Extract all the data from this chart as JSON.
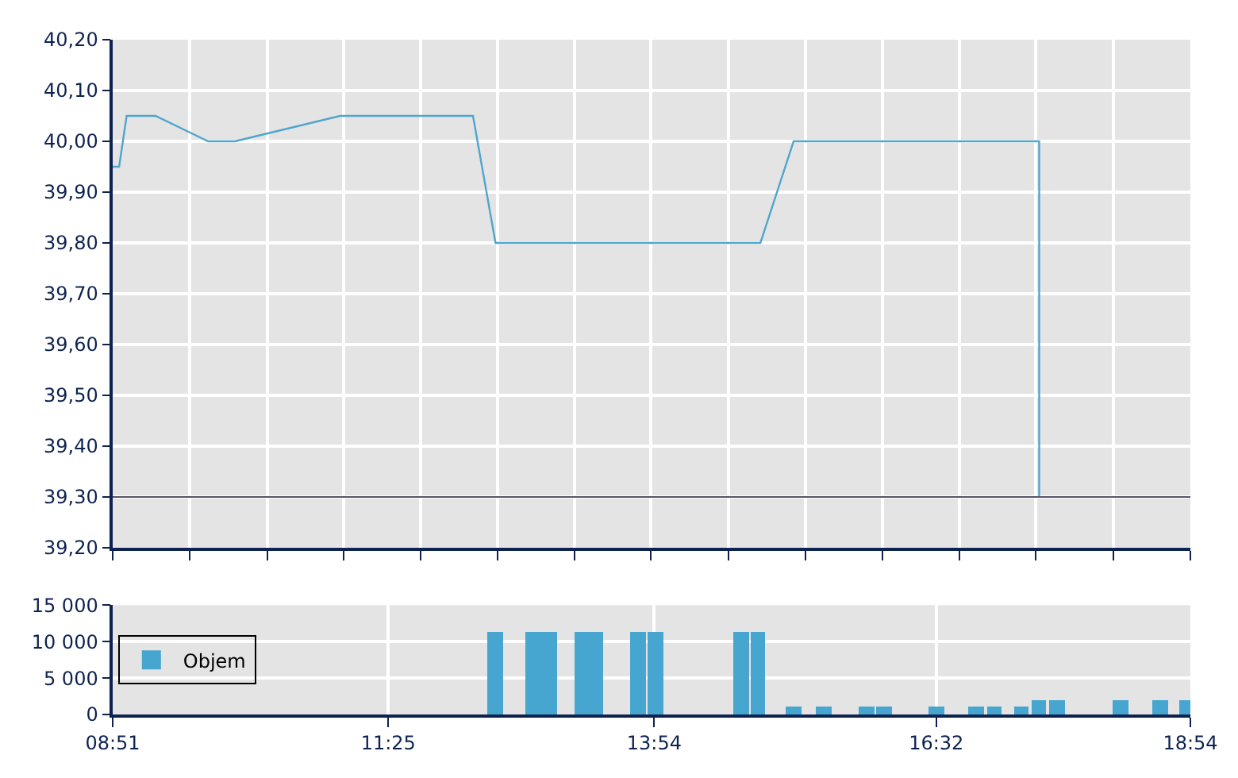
{
  "chart_data": [
    {
      "type": "line",
      "color": "#4fa6cc",
      "grid": true,
      "tick_labels": "y",
      "marker": "none",
      "x": [
        8.85,
        8.91,
        8.98,
        9.25,
        9.74,
        9.99,
        10.97,
        12.21,
        12.42,
        14.89,
        15.2,
        17.49,
        17.49
      ],
      "values": [
        39.95,
        39.95,
        40.05,
        40.05,
        40.0,
        40.0,
        40.05,
        40.05,
        39.8,
        39.8,
        40.0,
        40.0,
        39.3
      ],
      "xlim": [
        8.85,
        18.9
      ],
      "xticks": [
        {
          "value": 8.85,
          "label": null
        },
        {
          "value": 9.57,
          "label": null
        },
        {
          "value": 10.29,
          "label": null
        },
        {
          "value": 11.0,
          "label": null
        },
        {
          "value": 11.72,
          "label": null
        },
        {
          "value": 12.44,
          "label": null
        },
        {
          "value": 13.16,
          "label": null
        },
        {
          "value": 13.87,
          "label": null
        },
        {
          "value": 14.59,
          "label": null
        },
        {
          "value": 15.31,
          "label": null
        },
        {
          "value": 16.03,
          "label": null
        },
        {
          "value": 16.75,
          "label": null
        },
        {
          "value": 17.46,
          "label": null
        },
        {
          "value": 18.18,
          "label": null
        },
        {
          "value": 18.9,
          "label": null
        }
      ],
      "ylim": [
        39.2,
        40.2
      ],
      "yticks": [
        {
          "value": 39.2,
          "label": "39,20"
        },
        {
          "value": 39.3,
          "label": "39,30"
        },
        {
          "value": 39.4,
          "label": "39,40"
        },
        {
          "value": 39.5,
          "label": "39,50"
        },
        {
          "value": 39.6,
          "label": "39,60"
        },
        {
          "value": 39.7,
          "label": "39,70"
        },
        {
          "value": 39.8,
          "label": "39,80"
        },
        {
          "value": 39.9,
          "label": "39,90"
        },
        {
          "value": 40.0,
          "label": "40,00"
        },
        {
          "value": 40.1,
          "label": "40,10"
        },
        {
          "value": 40.2,
          "label": "40,20"
        }
      ],
      "ref_lines": [
        {
          "axis": "y",
          "value": 39.3,
          "color": "#555566"
        }
      ]
    },
    {
      "type": "bar",
      "grid": true,
      "legend": "left",
      "x": [
        12.42,
        12.77,
        12.92,
        13.23,
        13.36,
        13.75,
        13.91,
        14.71,
        14.87,
        15.2,
        15.48,
        15.88,
        16.04,
        16.53,
        16.9,
        17.07,
        17.32,
        17.49,
        17.66,
        18.25,
        18.62,
        18.87
      ],
      "series": [
        {
          "name": "Objem",
          "color": "#46a6cf",
          "values": [
            11200,
            11200,
            11200,
            11200,
            11200,
            11200,
            11200,
            11200,
            11200,
            1000,
            1000,
            1000,
            1000,
            1000,
            1000,
            1000,
            1000,
            2000,
            2000,
            2000,
            2000,
            2000
          ]
        }
      ],
      "xlim": [
        8.85,
        18.9
      ],
      "xticks": [
        {
          "value": 8.85,
          "label": "08:51"
        },
        {
          "value": 11.42,
          "label": "11:25"
        },
        {
          "value": 13.9,
          "label": "13:54"
        },
        {
          "value": 16.53,
          "label": "16:32"
        },
        {
          "value": 18.9,
          "label": "18:54"
        }
      ],
      "ylim": [
        0,
        15000
      ],
      "yticks": [
        {
          "value": 0,
          "label": "0"
        },
        {
          "value": 5000,
          "label": "5 000"
        },
        {
          "value": 10000,
          "label": "10 000"
        },
        {
          "value": 15000,
          "label": "15 000"
        }
      ]
    }
  ]
}
